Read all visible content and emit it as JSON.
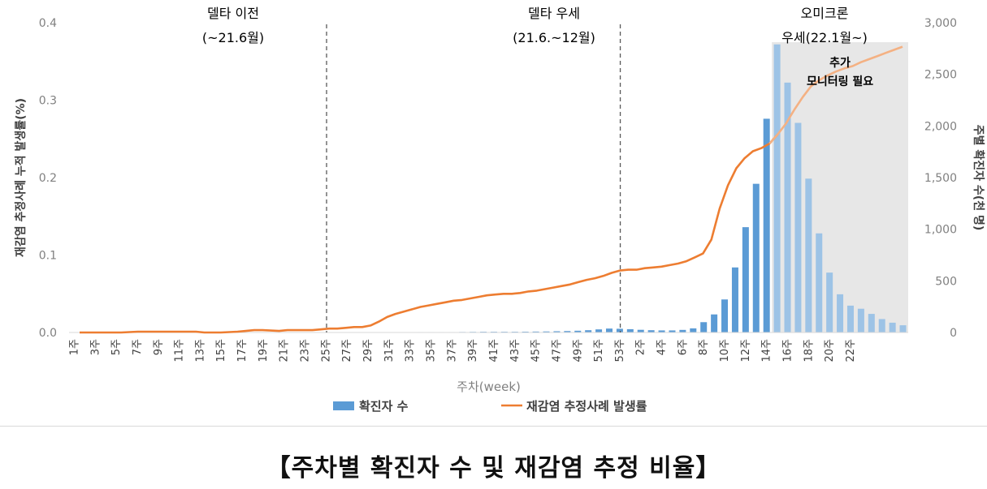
{
  "caption": "【주차별 확진자 수 및 재감염 추정 비율】",
  "chart_data": {
    "type": "bar+line",
    "y_left": {
      "label": "재감염 추정사례 누적 발생률(%)",
      "lim": [
        0,
        0.4
      ],
      "ticks": [
        "0.0",
        "0.1",
        "0.2",
        "0.3",
        "0.4"
      ]
    },
    "y_right": {
      "label": "주별 확진자 수(천 명)",
      "lim": [
        0,
        3000
      ],
      "ticks": [
        "0",
        "500",
        "1,000",
        "1,500",
        "2,000",
        "2,500",
        "3,000"
      ]
    },
    "xlabel": "주차(week)",
    "x_tick_labels": [
      "1주",
      "3주",
      "5주",
      "7주",
      "9주",
      "11주",
      "13주",
      "15주",
      "17주",
      "19주",
      "21주",
      "23주",
      "25주",
      "27주",
      "29주",
      "31주",
      "33주",
      "35주",
      "37주",
      "39주",
      "41주",
      "43주",
      "45주",
      "47주",
      "49주",
      "51주",
      "53주",
      "2주",
      "4주",
      "6주",
      "8주",
      "10주",
      "12주",
      "14주",
      "16주",
      "18주",
      "20주",
      "22주"
    ],
    "periods": [
      {
        "line1": "델타 이전",
        "line2": "(~21.6월)"
      },
      {
        "line1": "델타 우세",
        "line2": "(21.6.~12월)"
      },
      {
        "line1": "오미크론",
        "line2": "우세(22.1월~)"
      }
    ],
    "shade_label_1": "추가",
    "shade_label_2": "모니터링 필요",
    "legend": {
      "bar": "확진자 수",
      "line": "재감염 추정사례 발생률"
    },
    "colors": {
      "bar": "#5b9bd5",
      "bar_light": "#9dc3e6",
      "line": "#ed7d31",
      "line_light": "#f4b183",
      "shade": "#e7e7e7",
      "axis": "#808080"
    },
    "divider_after_week_index": [
      24,
      52
    ],
    "shade_from_week_index": 67,
    "series": [
      {
        "name": "확진자 수",
        "axis": "right",
        "unit": "천 명",
        "values": [
          0,
          0,
          0,
          0,
          0,
          0,
          0,
          0,
          0,
          0,
          0,
          0,
          0,
          0,
          0,
          0,
          0,
          0,
          0,
          0,
          0,
          0,
          0,
          0,
          0,
          0,
          0,
          0,
          0,
          0,
          2,
          3,
          3,
          4,
          4,
          4,
          4,
          5,
          6,
          7,
          7,
          7,
          7,
          8,
          9,
          10,
          12,
          14,
          17,
          22,
          30,
          38,
          36,
          32,
          26,
          22,
          20,
          20,
          25,
          40,
          100,
          175,
          320,
          630,
          1020,
          1440,
          2070,
          2790,
          2420,
          2030,
          1490,
          960,
          580,
          370,
          260,
          230,
          180,
          130,
          95,
          70
        ],
        "note": "values for weeks 1주(2021) .. 53주(2021) then 1주 .. 22주(2022)"
      },
      {
        "name": "재감염 추정사례 발생률",
        "axis": "left",
        "unit": "%",
        "values": [
          0,
          0,
          0,
          0,
          0,
          0,
          0.0005,
          0.001,
          0.001,
          0.001,
          0.001,
          0.001,
          0.001,
          0.001,
          0.001,
          0,
          0,
          0,
          0.0005,
          0.001,
          0.002,
          0.003,
          0.003,
          0.0025,
          0.002,
          0.003,
          0.003,
          0.003,
          0.003,
          0.004,
          0.005,
          0.005,
          0.006,
          0.007,
          0.007,
          0.009,
          0.014,
          0.02,
          0.024,
          0.027,
          0.03,
          0.033,
          0.035,
          0.037,
          0.039,
          0.041,
          0.042,
          0.044,
          0.046,
          0.048,
          0.049,
          0.05,
          0.05,
          0.051,
          0.053,
          0.054,
          0.056,
          0.058,
          0.06,
          0.062,
          0.065,
          0.068,
          0.07,
          0.073,
          0.077,
          0.08,
          0.081,
          0.081,
          0.083,
          0.084,
          0.085,
          0.087,
          0.089,
          0.092,
          0.097,
          0.102,
          0.12,
          0.16,
          0.19,
          0.212,
          0.225,
          0.234,
          0.238,
          0.244,
          0.256,
          0.27,
          0.288,
          0.304,
          0.318,
          0.326,
          0.332,
          0.337,
          0.341,
          0.344,
          0.349,
          0.353,
          0.357,
          0.361,
          0.365,
          0.369
        ],
        "points_note": "one value per x position (100 half-week samples) read from the curve"
      }
    ]
  }
}
